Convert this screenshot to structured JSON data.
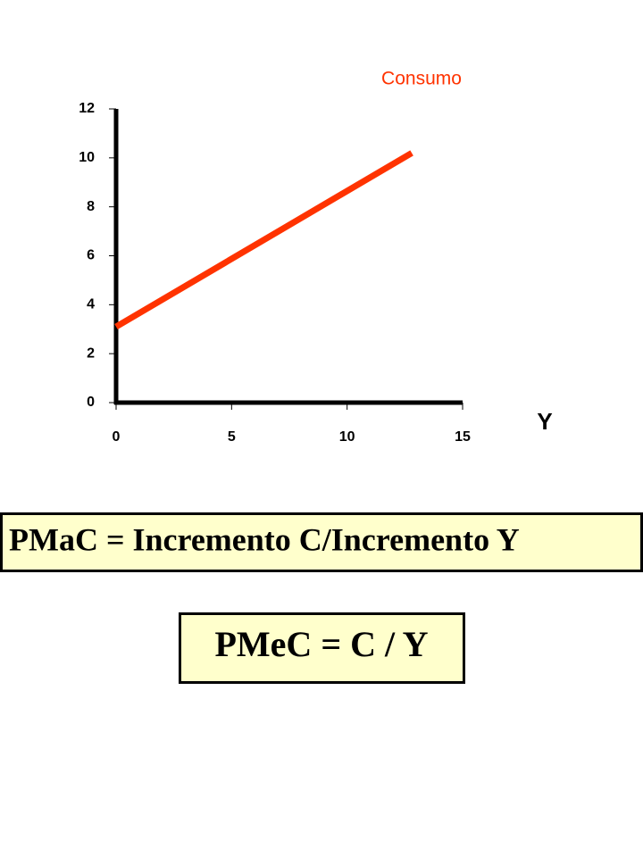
{
  "chart_data": {
    "type": "line",
    "x_label": "Y",
    "x": [
      0,
      12.8
    ],
    "series": [
      {
        "name": "Consumo",
        "color": "#ff3300",
        "values": [
          3.1,
          10.2
        ]
      }
    ],
    "xlim": [
      0,
      15
    ],
    "xticks": [
      0,
      5,
      10,
      15
    ],
    "ylim": [
      0,
      12
    ],
    "yticks": [
      0,
      2,
      4,
      6,
      8,
      10,
      12
    ]
  },
  "boxes": [
    "PMaC = Incremento C/Incremento Y",
    "PMeC = C / Y"
  ]
}
